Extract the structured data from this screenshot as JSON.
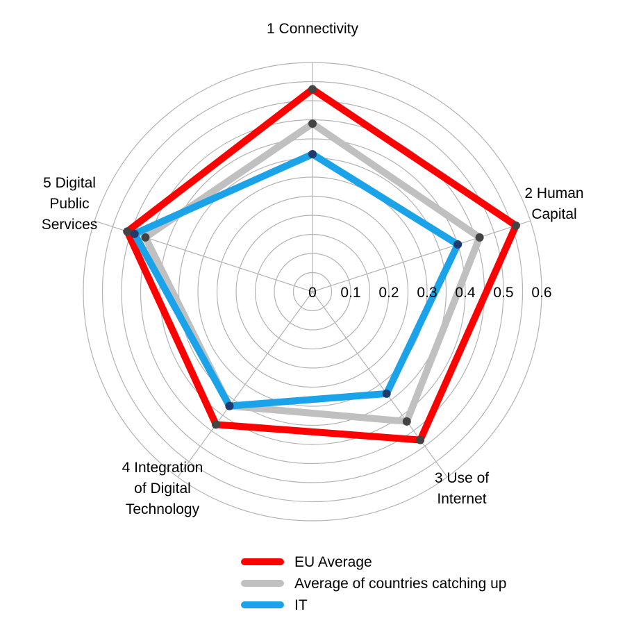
{
  "chart_data": {
    "type": "radar",
    "title": "",
    "axes": [
      [
        "1 Connectivity"
      ],
      [
        "2 Human",
        "Capital"
      ],
      [
        "3 Use of",
        "Internet"
      ],
      [
        "4 Integration",
        "of Digital",
        "Technology"
      ],
      [
        "5 Digital",
        "Public",
        "Services"
      ]
    ],
    "r_ticks": [
      "0",
      "0.1",
      "0.2",
      "0.3",
      "0.4",
      "0.5",
      "0.6"
    ],
    "r_range": [
      0,
      0.6
    ],
    "grid": true,
    "legend_position": "bottom",
    "series": [
      {
        "name": "EU Average",
        "color": "#ff0000",
        "values": [
          0.53,
          0.56,
          0.48,
          0.43,
          0.51
        ]
      },
      {
        "name": "Average of countries catching up",
        "color": "#c0c0c0",
        "values": [
          0.44,
          0.46,
          0.42,
          0.37,
          0.46
        ]
      },
      {
        "name": "IT",
        "color": "#1aa3e8",
        "values": [
          0.36,
          0.4,
          0.33,
          0.37,
          0.49
        ]
      }
    ]
  }
}
